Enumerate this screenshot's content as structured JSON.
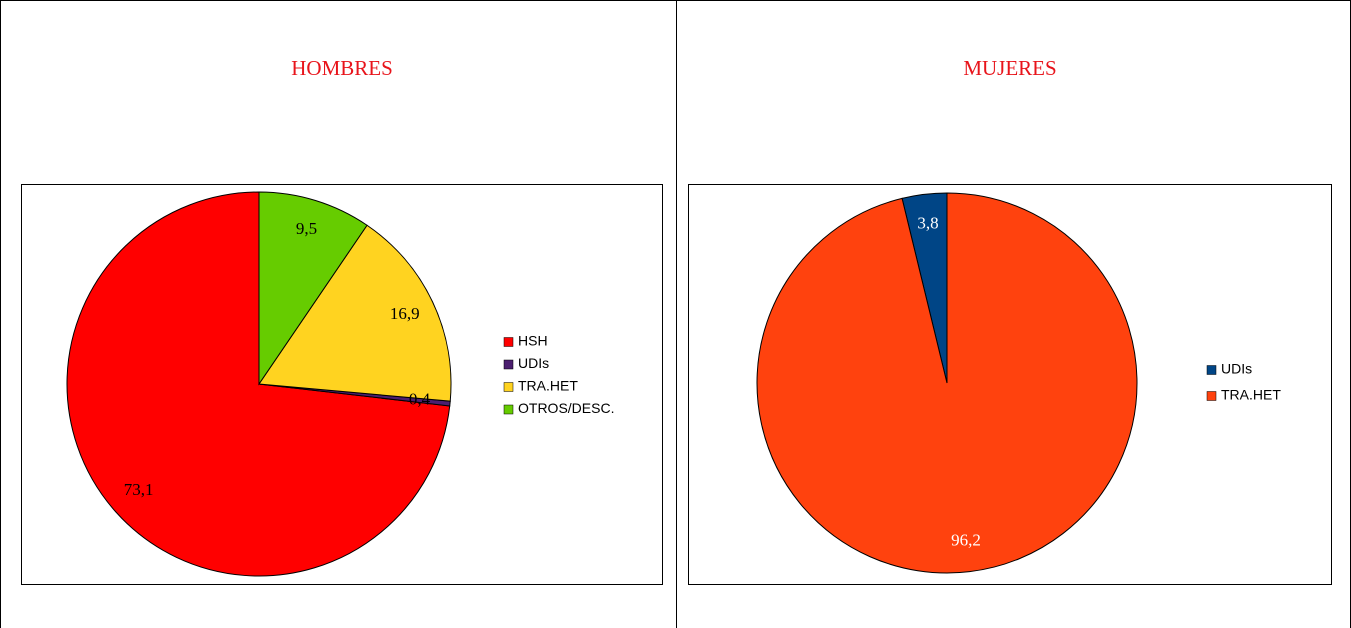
{
  "chart_data": [
    {
      "type": "pie",
      "title": "HOMBRES",
      "categories": [
        "HSH",
        "UDIs",
        "TRA.HET",
        "OTROS/DESC."
      ],
      "values": [
        73.1,
        0.4,
        16.9,
        9.5
      ],
      "value_labels": [
        "73,1",
        "0,4",
        "16,9",
        "9,5"
      ],
      "colors": [
        "#ff0000",
        "#4b1f6f",
        "#ffd320",
        "#66cc00"
      ],
      "label_color": "#000000"
    },
    {
      "type": "pie",
      "title": "MUJERES",
      "categories": [
        "UDIs",
        "TRA.HET"
      ],
      "values": [
        3.8,
        96.2
      ],
      "value_labels": [
        "3,8",
        "96,2"
      ],
      "colors": [
        "#004586",
        "#ff420e"
      ],
      "label_color": "#ffffff"
    }
  ]
}
